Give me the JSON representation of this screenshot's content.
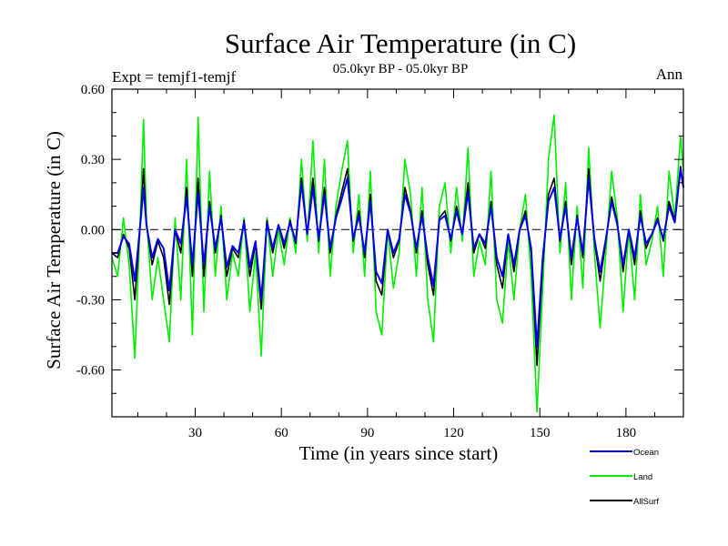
{
  "chart_data": {
    "type": "line",
    "title": "Surface Air Temperature (in C)",
    "subtitle": "05.0kyr BP - 05.0kyr BP",
    "expt_label": "Expt = temjf1-temjf",
    "season_label": "Ann",
    "xlabel": "Time (in years since start)",
    "ylabel": "Surface Air Temperature (in C)",
    "xlim": [
      1,
      200
    ],
    "ylim": [
      -0.8,
      0.6
    ],
    "xticks": [
      30,
      60,
      90,
      120,
      150,
      180
    ],
    "xtick_labels": [
      "30",
      "60",
      "90",
      "120",
      "150",
      "180"
    ],
    "yticks": [
      -0.6,
      -0.3,
      0.0,
      0.3,
      0.6
    ],
    "ytick_labels": [
      "-0.60",
      "-0.30",
      "0.00",
      "0.30",
      "0.60"
    ],
    "zero_line": "dashed",
    "legend_position": "bottom-right",
    "series": [
      {
        "name": "Land",
        "color": "#00ee00",
        "x": [
          1,
          3,
          5,
          7,
          9,
          11,
          12,
          13,
          15,
          17,
          19,
          21,
          23,
          25,
          27,
          29,
          31,
          33,
          35,
          37,
          39,
          41,
          43,
          45,
          47,
          49,
          51,
          53,
          55,
          57,
          59,
          61,
          63,
          65,
          67,
          69,
          71,
          73,
          75,
          77,
          79,
          81,
          83,
          85,
          87,
          89,
          91,
          93,
          95,
          97,
          99,
          101,
          103,
          105,
          107,
          109,
          111,
          113,
          115,
          117,
          119,
          121,
          123,
          125,
          127,
          129,
          131,
          133,
          135,
          137,
          139,
          141,
          143,
          145,
          147,
          149,
          151,
          153,
          155,
          157,
          159,
          161,
          163,
          165,
          167,
          169,
          171,
          173,
          175,
          177,
          179,
          181,
          183,
          185,
          187,
          189,
          191,
          193,
          195,
          197,
          199,
          200
        ],
        "values": [
          -0.12,
          -0.2,
          0.05,
          -0.15,
          -0.55,
          0.1,
          0.47,
          0.05,
          -0.3,
          -0.12,
          -0.3,
          -0.48,
          0.05,
          -0.3,
          0.3,
          -0.45,
          0.48,
          -0.35,
          0.25,
          -0.2,
          0.1,
          -0.3,
          -0.1,
          -0.2,
          0.05,
          -0.35,
          -0.1,
          -0.54,
          0.05,
          -0.2,
          0.0,
          -0.15,
          0.05,
          -0.1,
          0.3,
          -0.05,
          0.38,
          -0.1,
          0.3,
          -0.2,
          0.1,
          0.25,
          0.38,
          -0.1,
          0.15,
          -0.2,
          0.25,
          -0.35,
          -0.45,
          0.0,
          -0.25,
          -0.1,
          0.3,
          0.15,
          -0.2,
          0.18,
          -0.3,
          -0.48,
          0.1,
          0.2,
          -0.1,
          0.18,
          -0.05,
          0.35,
          -0.2,
          -0.05,
          -0.15,
          0.25,
          -0.3,
          -0.4,
          -0.05,
          -0.3,
          0.0,
          0.15,
          -0.2,
          -0.78,
          -0.25,
          0.3,
          0.49,
          -0.1,
          0.2,
          -0.3,
          0.1,
          -0.25,
          0.35,
          -0.1,
          -0.42,
          -0.1,
          0.25,
          0.05,
          -0.35,
          0.0,
          -0.3,
          0.15,
          -0.15,
          -0.05,
          0.1,
          -0.2,
          0.25,
          0.05,
          0.4,
          0.25
        ]
      },
      {
        "name": "AllSurf",
        "color": "#000000",
        "x": [
          1,
          3,
          5,
          7,
          9,
          11,
          12,
          13,
          15,
          17,
          19,
          21,
          23,
          25,
          27,
          29,
          31,
          33,
          35,
          37,
          39,
          41,
          43,
          45,
          47,
          49,
          51,
          53,
          55,
          57,
          59,
          61,
          63,
          65,
          67,
          69,
          71,
          73,
          75,
          77,
          79,
          81,
          83,
          85,
          87,
          89,
          91,
          93,
          95,
          97,
          99,
          101,
          103,
          105,
          107,
          109,
          111,
          113,
          115,
          117,
          119,
          121,
          123,
          125,
          127,
          129,
          131,
          133,
          135,
          137,
          139,
          141,
          143,
          145,
          147,
          149,
          151,
          153,
          155,
          157,
          159,
          161,
          163,
          165,
          167,
          169,
          171,
          173,
          175,
          177,
          179,
          181,
          183,
          185,
          187,
          189,
          191,
          193,
          195,
          197,
          199,
          200
        ],
        "values": [
          -0.1,
          -0.12,
          -0.02,
          -0.08,
          -0.3,
          0.05,
          0.26,
          0.02,
          -0.15,
          -0.05,
          -0.12,
          -0.32,
          0.0,
          -0.1,
          0.18,
          -0.2,
          0.22,
          -0.2,
          0.12,
          -0.1,
          0.06,
          -0.2,
          -0.08,
          -0.12,
          0.04,
          -0.2,
          -0.06,
          -0.34,
          0.04,
          -0.1,
          0.02,
          -0.08,
          0.04,
          -0.06,
          0.22,
          -0.02,
          0.22,
          -0.05,
          0.18,
          -0.1,
          0.06,
          0.16,
          0.26,
          -0.05,
          0.08,
          -0.12,
          0.15,
          -0.22,
          -0.28,
          0.0,
          -0.12,
          -0.05,
          0.18,
          0.08,
          -0.1,
          0.08,
          -0.15,
          -0.28,
          0.05,
          0.08,
          -0.05,
          0.1,
          -0.02,
          0.2,
          -0.1,
          -0.02,
          -0.08,
          0.12,
          -0.15,
          -0.25,
          -0.02,
          -0.18,
          0.0,
          0.08,
          -0.1,
          -0.58,
          -0.15,
          0.15,
          0.22,
          -0.05,
          0.12,
          -0.15,
          0.06,
          -0.12,
          0.26,
          -0.05,
          -0.22,
          -0.05,
          0.14,
          0.03,
          -0.18,
          0.0,
          -0.15,
          0.08,
          -0.08,
          -0.02,
          0.05,
          -0.05,
          0.12,
          0.04,
          0.27,
          0.18
        ]
      },
      {
        "name": "Ocean",
        "color": "#0000ee",
        "x": [
          1,
          3,
          5,
          7,
          9,
          11,
          12,
          13,
          15,
          17,
          19,
          21,
          23,
          25,
          27,
          29,
          31,
          33,
          35,
          37,
          39,
          41,
          43,
          45,
          47,
          49,
          51,
          53,
          55,
          57,
          59,
          61,
          63,
          65,
          67,
          69,
          71,
          73,
          75,
          77,
          79,
          81,
          83,
          85,
          87,
          89,
          91,
          93,
          95,
          97,
          99,
          101,
          103,
          105,
          107,
          109,
          111,
          113,
          115,
          117,
          119,
          121,
          123,
          125,
          127,
          129,
          131,
          133,
          135,
          137,
          139,
          141,
          143,
          145,
          147,
          149,
          151,
          153,
          155,
          157,
          159,
          161,
          163,
          165,
          167,
          169,
          171,
          173,
          175,
          177,
          179,
          181,
          183,
          185,
          187,
          189,
          191,
          193,
          195,
          197,
          199,
          200
        ],
        "values": [
          -0.1,
          -0.1,
          -0.03,
          -0.06,
          -0.22,
          0.04,
          0.18,
          0.02,
          -0.12,
          -0.04,
          -0.08,
          -0.26,
          0.0,
          -0.06,
          0.14,
          -0.15,
          0.16,
          -0.15,
          0.1,
          -0.08,
          0.05,
          -0.16,
          -0.07,
          -0.1,
          0.03,
          -0.16,
          -0.05,
          -0.3,
          0.03,
          -0.08,
          0.02,
          -0.06,
          0.03,
          -0.05,
          0.2,
          -0.02,
          0.18,
          -0.04,
          0.15,
          -0.08,
          0.05,
          0.13,
          0.22,
          -0.04,
          0.06,
          -0.1,
          0.12,
          -0.18,
          -0.23,
          0.0,
          -0.1,
          -0.04,
          0.15,
          0.07,
          -0.08,
          0.06,
          -0.12,
          -0.24,
          0.04,
          0.06,
          -0.04,
          0.08,
          -0.02,
          0.16,
          -0.08,
          -0.02,
          -0.06,
          0.1,
          -0.12,
          -0.2,
          -0.02,
          -0.15,
          0.0,
          0.06,
          -0.08,
          -0.5,
          -0.12,
          0.12,
          0.18,
          -0.04,
          0.1,
          -0.12,
          0.05,
          -0.1,
          0.22,
          -0.04,
          -0.18,
          -0.04,
          0.12,
          0.02,
          -0.15,
          0.0,
          -0.12,
          0.06,
          -0.06,
          -0.02,
          0.04,
          -0.04,
          0.1,
          0.03,
          0.26,
          0.18
        ]
      }
    ],
    "legend": [
      {
        "name": "Ocean",
        "color": "#0000ee"
      },
      {
        "name": "Land",
        "color": "#00ee00"
      },
      {
        "name": "AllSurf",
        "color": "#000000"
      }
    ]
  }
}
